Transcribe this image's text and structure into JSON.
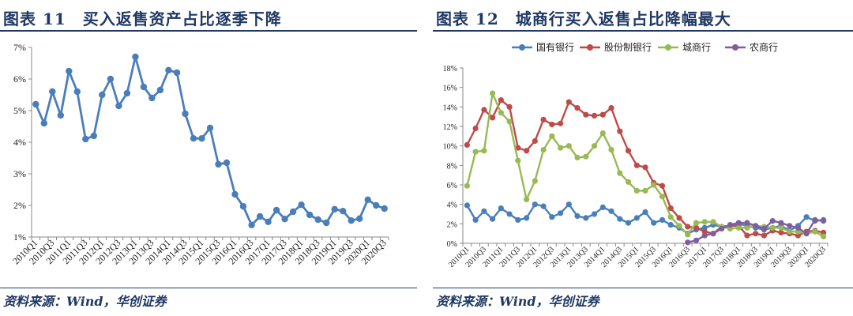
{
  "left": {
    "title": "图表 11　买入返售资产占比逐季下降",
    "source": "资料来源：Wind，华创证券"
  },
  "right": {
    "title": "图表 12　城商行买入返售占比降幅最大",
    "source": "资料来源：Wind，华创证券"
  },
  "colors": {
    "blue": "#4a7ebb",
    "red": "#be4b48",
    "green": "#98b954",
    "purple": "#7d5fa0",
    "navy": "#1f3864"
  },
  "chart_data": [
    {
      "type": "line",
      "title": "买入返售资产占比逐季下降",
      "ylim": [
        1,
        7
      ],
      "y_ticks": [
        "1%",
        "2%",
        "3%",
        "4%",
        "5%",
        "6%",
        "7%"
      ],
      "x_tick_labels": [
        "2010Q1",
        "2010Q3",
        "2011Q1",
        "2011Q3",
        "2012Q1",
        "2012Q3",
        "2013Q1",
        "2013Q3",
        "2014Q1",
        "2014Q3",
        "2015Q1",
        "2015Q3",
        "2016Q1",
        "2016Q3",
        "2017Q1",
        "2017Q3",
        "2018Q1",
        "2018Q3",
        "2019Q1",
        "2019Q3",
        "2020Q1",
        "2020Q3"
      ],
      "categories": [
        "2010Q1",
        "2010Q2",
        "2010Q3",
        "2010Q4",
        "2011Q1",
        "2011Q2",
        "2011Q3",
        "2011Q4",
        "2012Q1",
        "2012Q2",
        "2012Q3",
        "2012Q4",
        "2013Q1",
        "2013Q2",
        "2013Q3",
        "2013Q4",
        "2014Q1",
        "2014Q2",
        "2014Q3",
        "2014Q4",
        "2015Q1",
        "2015Q2",
        "2015Q3",
        "2015Q4",
        "2016Q1",
        "2016Q2",
        "2016Q3",
        "2016Q4",
        "2017Q1",
        "2017Q2",
        "2017Q3",
        "2017Q4",
        "2018Q1",
        "2018Q2",
        "2018Q3",
        "2018Q4",
        "2019Q1",
        "2019Q2",
        "2019Q3",
        "2019Q4",
        "2020Q1",
        "2020Q2",
        "2020Q3"
      ],
      "series": [
        {
          "name": "买入返售资产占比",
          "color": "#4a7ebb",
          "values": [
            5.2,
            4.6,
            5.6,
            4.85,
            6.25,
            5.6,
            4.1,
            4.2,
            5.5,
            6.0,
            5.15,
            5.55,
            6.7,
            5.75,
            5.4,
            5.65,
            6.28,
            6.2,
            4.9,
            4.12,
            4.12,
            4.45,
            3.3,
            3.35,
            2.35,
            1.97,
            1.38,
            1.65,
            1.48,
            1.85,
            1.57,
            1.8,
            2.02,
            1.7,
            1.55,
            1.45,
            1.88,
            1.82,
            1.52,
            1.58,
            2.18,
            2.0,
            1.9
          ]
        }
      ]
    },
    {
      "type": "line",
      "title": "城商行买入返售占比降幅最大",
      "ylim": [
        0,
        18
      ],
      "y_ticks": [
        "0%",
        "2%",
        "4%",
        "6%",
        "8%",
        "10%",
        "12%",
        "14%",
        "16%",
        "18%"
      ],
      "x_tick_labels": [
        "2010Q1",
        "2010Q3",
        "2011Q1",
        "2011Q3",
        "2012Q1",
        "2012Q3",
        "2013Q1",
        "2013Q3",
        "2014Q1",
        "2014Q3",
        "2015Q1",
        "2015Q3",
        "2016Q1",
        "2016Q3",
        "2017Q1",
        "2017Q3",
        "2018Q1",
        "2018Q3",
        "2019Q1",
        "2019Q3",
        "2020Q1",
        "2020Q3"
      ],
      "categories": [
        "2010Q1",
        "2010Q2",
        "2010Q3",
        "2010Q4",
        "2011Q1",
        "2011Q2",
        "2011Q3",
        "2011Q4",
        "2012Q1",
        "2012Q2",
        "2012Q3",
        "2012Q4",
        "2013Q1",
        "2013Q2",
        "2013Q3",
        "2013Q4",
        "2014Q1",
        "2014Q2",
        "2014Q3",
        "2014Q4",
        "2015Q1",
        "2015Q2",
        "2015Q3",
        "2015Q4",
        "2016Q1",
        "2016Q2",
        "2016Q3",
        "2016Q4",
        "2017Q1",
        "2017Q2",
        "2017Q3",
        "2017Q4",
        "2018Q1",
        "2018Q2",
        "2018Q3",
        "2018Q4",
        "2019Q1",
        "2019Q2",
        "2019Q3",
        "2019Q4",
        "2020Q1",
        "2020Q2",
        "2020Q3"
      ],
      "legend": [
        "国有银行",
        "股份制银行",
        "城商行",
        "农商行"
      ],
      "series": [
        {
          "name": "国有银行",
          "color": "#4a7ebb",
          "values": [
            3.9,
            2.4,
            3.3,
            2.5,
            3.6,
            3.0,
            2.4,
            2.6,
            4.0,
            3.8,
            2.7,
            3.1,
            4.0,
            2.8,
            2.6,
            3.0,
            3.7,
            3.3,
            2.5,
            2.1,
            2.6,
            3.2,
            2.1,
            2.4,
            1.9,
            1.6,
            1.0,
            1.4,
            1.6,
            1.9,
            1.7,
            1.8,
            2.0,
            1.8,
            1.6,
            1.4,
            1.6,
            1.8,
            1.3,
            1.8,
            2.7,
            2.3,
            2.4
          ]
        },
        {
          "name": "股份制银行",
          "color": "#be4b48",
          "values": [
            10.1,
            11.8,
            13.7,
            12.9,
            14.7,
            14.0,
            9.8,
            9.5,
            10.5,
            12.7,
            12.2,
            12.3,
            14.5,
            13.9,
            13.2,
            13.1,
            13.2,
            13.9,
            11.5,
            9.5,
            8.0,
            7.8,
            6.2,
            5.9,
            3.6,
            2.6,
            1.7,
            1.6,
            1.2,
            1.0,
            1.7,
            1.8,
            1.8,
            0.8,
            1.0,
            0.8,
            1.3,
            1.1,
            1.0,
            0.8,
            1.2,
            1.3,
            1.1
          ]
        },
        {
          "name": "城商行",
          "color": "#98b954",
          "values": [
            5.9,
            9.4,
            9.5,
            15.4,
            13.4,
            12.5,
            8.5,
            4.5,
            6.4,
            9.6,
            11.0,
            9.8,
            10.0,
            8.8,
            8.9,
            10.0,
            11.3,
            9.6,
            7.2,
            6.3,
            5.4,
            5.4,
            6.0,
            4.8,
            2.7,
            1.8,
            0.9,
            2.1,
            2.2,
            2.2,
            1.7,
            1.5,
            1.6,
            1.6,
            1.8,
            1.7,
            1.6,
            1.6,
            1.2,
            1.2,
            1.0,
            1.2,
            0.7
          ]
        },
        {
          "name": "农商行",
          "color": "#7d5fa0",
          "values": [
            null,
            null,
            null,
            null,
            null,
            null,
            null,
            null,
            null,
            null,
            null,
            null,
            null,
            null,
            null,
            null,
            null,
            null,
            null,
            null,
            null,
            null,
            null,
            null,
            null,
            null,
            0.1,
            0.3,
            0.8,
            1.0,
            1.5,
            1.9,
            2.1,
            2.1,
            1.8,
            1.5,
            2.3,
            2.1,
            1.8,
            1.6,
            1.0,
            2.4,
            2.3
          ]
        }
      ]
    }
  ]
}
